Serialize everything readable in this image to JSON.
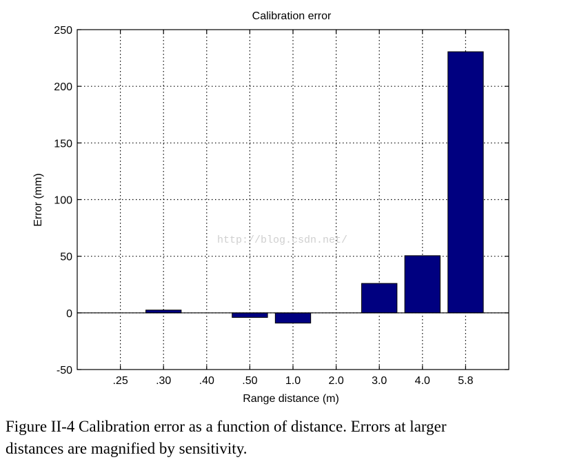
{
  "chart_data": {
    "type": "bar",
    "title": "Calibration error",
    "xlabel": "Range distance (m)",
    "ylabel": "Error (mm)",
    "categories": [
      ".25",
      ".30",
      ".40",
      ".50",
      "1.0",
      "2.0",
      "3.0",
      "4.0",
      "5.8"
    ],
    "values": [
      0,
      2.5,
      0,
      -4,
      -9,
      0,
      26,
      50.5,
      230.5
    ],
    "ylim": [
      -50,
      250
    ],
    "yticks": [
      -50,
      0,
      50,
      100,
      150,
      200,
      250
    ],
    "grid": true,
    "bar_color": "#000080",
    "watermark": "http://blog.csdn.net/"
  },
  "caption": {
    "line1": "Figure II-4   Calibration error as a function of distance.  Errors at larger",
    "line2": "distances are magnified by sensitivity."
  }
}
